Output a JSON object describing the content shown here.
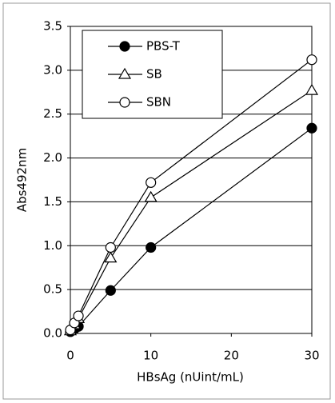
{
  "chart_data": {
    "type": "line",
    "xlabel": "HBsAg (nUint/mL)",
    "ylabel": "Abs492nm",
    "x": [
      0,
      0.5,
      1,
      5,
      10,
      30
    ],
    "series": [
      {
        "name": "PBS-T",
        "color": "#000000",
        "marker": "filled-circle",
        "values": [
          0.02,
          0.05,
          0.08,
          0.49,
          0.98,
          2.34
        ]
      },
      {
        "name": "SB",
        "color": "#000000",
        "marker": "open-triangle",
        "values": [
          0.03,
          0.1,
          0.17,
          0.86,
          1.55,
          2.77
        ]
      },
      {
        "name": "SBN",
        "color": "#000000",
        "marker": "open-circle",
        "values": [
          0.04,
          0.12,
          0.2,
          0.98,
          1.72,
          3.12
        ]
      }
    ],
    "xlim": [
      0,
      30
    ],
    "xticks": [
      0,
      10,
      20,
      30
    ],
    "ylim": [
      0,
      3.5
    ],
    "yticks": [
      {
        "value": 0,
        "label": "0.0"
      },
      0.5,
      {
        "value": 1,
        "label": "1.0"
      },
      1.5,
      {
        "value": 2,
        "label": "2.0"
      },
      2.5,
      {
        "value": 3,
        "label": "3.0"
      },
      3.5
    ],
    "grid": true,
    "legend": "upper left"
  }
}
